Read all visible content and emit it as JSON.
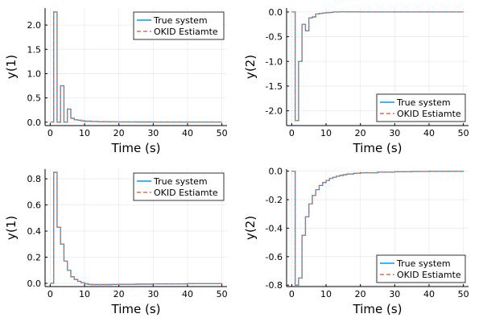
{
  "colors": {
    "true_system": "#009AFA",
    "okid_estimate": "#E36F47",
    "background": "#FFFFFF"
  },
  "chart_data": [
    {
      "type": "line",
      "step": true,
      "xlabel": "Time (s)",
      "ylabel": "y(1)",
      "xlim": [
        -1.5,
        51.5
      ],
      "ylim": [
        -0.07,
        2.35
      ],
      "xticks": [
        0,
        10,
        20,
        30,
        40,
        50
      ],
      "yticks": [
        0.0,
        0.5,
        1.0,
        1.5,
        2.0
      ],
      "ytick_labels": [
        "0.0",
        "0.5",
        "1.0",
        "1.5",
        "2.0"
      ],
      "grid": true,
      "legend": "top-right",
      "x": [
        0,
        1,
        2,
        3,
        4,
        5,
        6,
        7,
        8,
        9,
        10,
        12,
        14,
        16,
        18,
        20,
        25,
        30,
        40,
        50
      ],
      "series": [
        {
          "name": "True system",
          "style": "solid",
          "values": [
            0,
            2.27,
            0,
            0.75,
            0,
            0.27,
            0.08,
            0.05,
            0.04,
            0.03,
            0.02,
            0.015,
            0.01,
            0.008,
            0.006,
            0.005,
            0.004,
            0.003,
            0.003,
            0.003
          ]
        },
        {
          "name": "OKID Estiamte",
          "style": "dashed",
          "values": [
            0,
            2.27,
            0,
            0.75,
            0,
            0.27,
            0.08,
            0.05,
            0.04,
            0.03,
            0.02,
            0.015,
            0.01,
            0.008,
            0.006,
            0.005,
            0.004,
            0.003,
            0.003,
            0.003
          ]
        }
      ]
    },
    {
      "type": "line",
      "step": true,
      "xlabel": "Time (s)",
      "ylabel": "y(2)",
      "xlim": [
        -1.5,
        51.5
      ],
      "ylim": [
        -2.3,
        0.08
      ],
      "xticks": [
        0,
        10,
        20,
        30,
        40,
        50
      ],
      "yticks": [
        -2.0,
        -1.5,
        -1.0,
        -0.5,
        0.0
      ],
      "ytick_labels": [
        "-2.0",
        "-1.5",
        "-1.0",
        "-0.5",
        "0.0"
      ],
      "grid": true,
      "legend": "bottom-right",
      "x": [
        0,
        1,
        2,
        3,
        4,
        5,
        6,
        7,
        8,
        9,
        10,
        11,
        12,
        14,
        16,
        20,
        30,
        40,
        50
      ],
      "series": [
        {
          "name": "True system",
          "style": "solid",
          "values": [
            0,
            -2.2,
            -1.0,
            -0.25,
            -0.38,
            -0.12,
            -0.1,
            -0.04,
            -0.03,
            -0.02,
            -0.015,
            -0.01,
            0.0,
            0.005,
            0.003,
            0.001,
            0,
            0,
            0
          ]
        },
        {
          "name": "OKID Estiamte",
          "style": "dashed",
          "values": [
            0,
            -2.2,
            -1.0,
            -0.25,
            -0.38,
            -0.12,
            -0.1,
            -0.04,
            -0.03,
            -0.02,
            -0.015,
            -0.01,
            0.0,
            0.005,
            0.003,
            0.001,
            0,
            0,
            0
          ]
        }
      ]
    },
    {
      "type": "line",
      "step": true,
      "xlabel": "Time (s)",
      "ylabel": "y(1)",
      "xlim": [
        -1.5,
        51.5
      ],
      "ylim": [
        -0.025,
        0.875
      ],
      "xticks": [
        0,
        10,
        20,
        30,
        40,
        50
      ],
      "yticks": [
        0.0,
        0.2,
        0.4,
        0.6,
        0.8
      ],
      "ytick_labels": [
        "0.0",
        "0.2",
        "0.4",
        "0.6",
        "0.8"
      ],
      "grid": true,
      "legend": "top-right",
      "x": [
        0,
        1,
        2,
        3,
        4,
        5,
        6,
        7,
        8,
        9,
        10,
        11,
        12,
        14,
        16,
        18,
        20,
        25,
        30,
        40,
        50
      ],
      "series": [
        {
          "name": "True system",
          "style": "solid",
          "values": [
            0,
            0.85,
            0.43,
            0.3,
            0.17,
            0.1,
            0.05,
            0.03,
            0.015,
            0.005,
            -0.003,
            -0.008,
            -0.01,
            -0.01,
            -0.01,
            -0.009,
            -0.008,
            -0.006,
            -0.004,
            -0.002,
            0.0
          ]
        },
        {
          "name": "OKID Estiamte",
          "style": "dashed",
          "values": [
            0,
            0.85,
            0.43,
            0.3,
            0.17,
            0.1,
            0.05,
            0.03,
            0.015,
            0.005,
            -0.003,
            -0.008,
            -0.01,
            -0.01,
            -0.01,
            -0.009,
            -0.008,
            -0.006,
            -0.004,
            -0.002,
            0.0
          ]
        }
      ]
    },
    {
      "type": "line",
      "step": true,
      "xlabel": "Time (s)",
      "ylabel": "y(2)",
      "xlim": [
        -1.5,
        51.5
      ],
      "ylim": [
        -0.81,
        0.015
      ],
      "xticks": [
        0,
        10,
        20,
        30,
        40,
        50
      ],
      "yticks": [
        -0.8,
        -0.6,
        -0.4,
        -0.2,
        0.0
      ],
      "ytick_labels": [
        "-0.8",
        "-0.6",
        "-0.4",
        "-0.2",
        "0.0"
      ],
      "grid": true,
      "legend": "bottom-right",
      "x": [
        0,
        1,
        2,
        3,
        4,
        5,
        6,
        7,
        8,
        9,
        10,
        11,
        12,
        13,
        14,
        15,
        16,
        18,
        20,
        25,
        30,
        35,
        40,
        50
      ],
      "series": [
        {
          "name": "True system",
          "style": "solid",
          "values": [
            0,
            -0.8,
            -0.75,
            -0.45,
            -0.32,
            -0.23,
            -0.17,
            -0.13,
            -0.1,
            -0.08,
            -0.065,
            -0.05,
            -0.042,
            -0.035,
            -0.03,
            -0.025,
            -0.02,
            -0.015,
            -0.011,
            -0.007,
            -0.004,
            -0.002,
            -0.001,
            0.0
          ]
        },
        {
          "name": "OKID Estiamte",
          "style": "dashed",
          "values": [
            0,
            -0.8,
            -0.75,
            -0.45,
            -0.32,
            -0.23,
            -0.17,
            -0.13,
            -0.1,
            -0.08,
            -0.065,
            -0.05,
            -0.042,
            -0.035,
            -0.03,
            -0.025,
            -0.02,
            -0.015,
            -0.011,
            -0.007,
            -0.004,
            -0.002,
            -0.001,
            0.0
          ]
        }
      ]
    }
  ]
}
